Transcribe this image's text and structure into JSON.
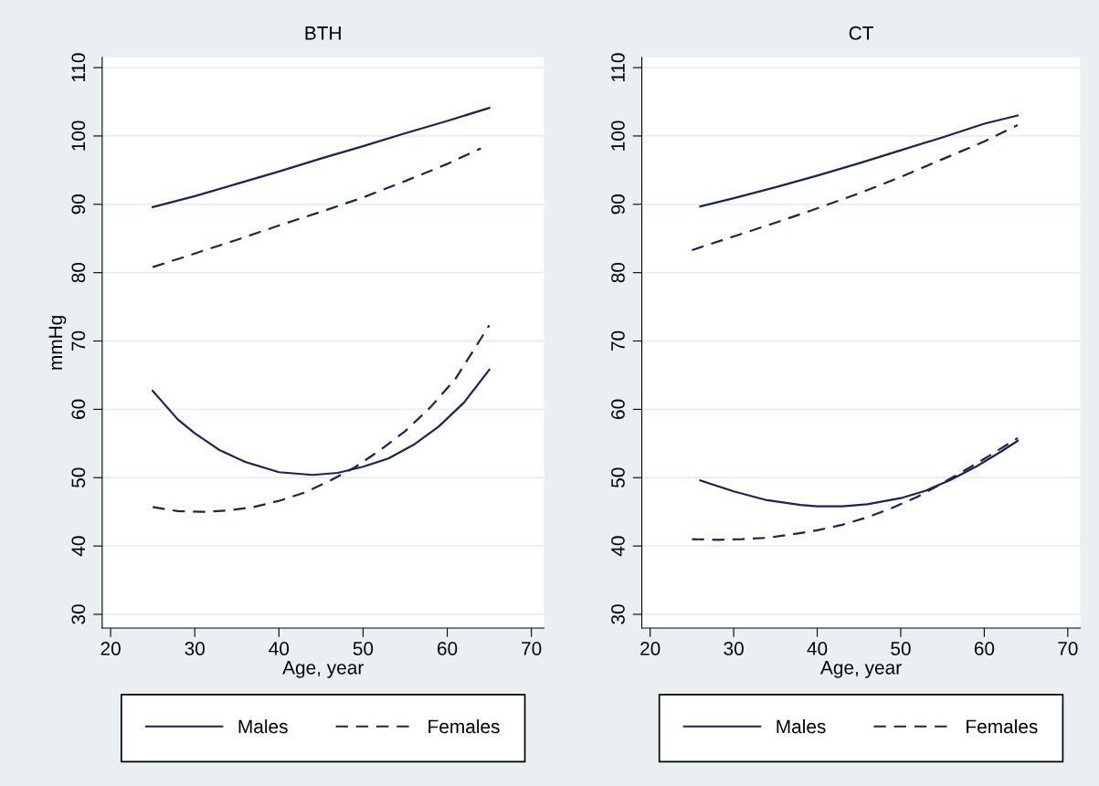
{
  "chart_data": [
    {
      "type": "line",
      "title": "BTH",
      "xlabel": "Age, year",
      "ylabel": "mmHg",
      "xlim": [
        19,
        71.5
      ],
      "ylim": [
        28,
        111.5
      ],
      "xticks": [
        20,
        30,
        40,
        50,
        60,
        70
      ],
      "yticks": [
        30,
        40,
        50,
        60,
        70,
        80,
        90,
        100,
        110
      ],
      "grid": "y",
      "legend": "bottom",
      "series": [
        {
          "name": "Males",
          "color": "#1a2550",
          "line_style": "solid",
          "x": [
            25,
            30,
            35,
            40,
            45,
            50,
            55,
            60,
            65
          ],
          "values": [
            89.6,
            91.2,
            93,
            94.8,
            96.7,
            98.5,
            100.4,
            102.2,
            104.1
          ]
        },
        {
          "name": "Females",
          "color": "#1a2550",
          "line_style": "dashed",
          "x": [
            25,
            30,
            35,
            40,
            45,
            50,
            55,
            60,
            64
          ],
          "values": [
            80.8,
            82.8,
            84.8,
            86.9,
            88.9,
            91.0,
            93.4,
            95.9,
            98.2
          ]
        },
        {
          "color": "#1a2550",
          "line_style": "solid",
          "x": [
            25,
            28,
            30,
            33,
            36,
            40,
            44,
            47,
            50,
            53,
            56,
            59,
            62,
            65
          ],
          "values": [
            62.7,
            58.5,
            56.5,
            54,
            52.3,
            50.8,
            50.4,
            50.7,
            51.6,
            52.8,
            54.8,
            57.5,
            61,
            65.8
          ]
        },
        {
          "color": "#1a2550",
          "line_style": "dashed",
          "x": [
            25,
            28,
            31,
            34,
            37,
            40,
            43,
            46,
            49,
            52,
            55,
            58,
            61,
            65
          ],
          "values": [
            45.7,
            45.1,
            45.0,
            45.2,
            45.7,
            46.6,
            47.8,
            49.5,
            51.5,
            54,
            56.8,
            60.3,
            64.5,
            72.3
          ]
        }
      ]
    },
    {
      "type": "line",
      "title": "CT",
      "xlabel": "Age, year",
      "xlim": [
        19,
        71.5
      ],
      "ylim": [
        28,
        111.5
      ],
      "xticks": [
        20,
        30,
        40,
        50,
        60,
        70
      ],
      "yticks": [
        30,
        40,
        50,
        60,
        70,
        80,
        90,
        100,
        110
      ],
      "grid": "y",
      "legend": "bottom",
      "series": [
        {
          "name": "Males",
          "color": "#1a2550",
          "line_style": "solid",
          "x": [
            26,
            30,
            35,
            40,
            45,
            50,
            55,
            60,
            64
          ],
          "values": [
            89.7,
            90.9,
            92.5,
            94.2,
            96.0,
            97.9,
            99.8,
            101.8,
            103.0
          ]
        },
        {
          "name": "Females",
          "color": "#1a2550",
          "line_style": "dashed",
          "x": [
            25,
            30,
            35,
            40,
            45,
            50,
            55,
            60,
            64
          ],
          "values": [
            83.3,
            85.3,
            87.3,
            89.4,
            91.6,
            94.0,
            96.6,
            99.2,
            101.6
          ]
        },
        {
          "color": "#1a2550",
          "line_style": "solid",
          "x": [
            26,
            30,
            34,
            38,
            40,
            43,
            46,
            50,
            53,
            56,
            59,
            62,
            64
          ],
          "values": [
            49.6,
            48.0,
            46.7,
            46.0,
            45.8,
            45.8,
            46.1,
            47.0,
            48.1,
            49.7,
            51.6,
            53.8,
            55.4
          ]
        },
        {
          "color": "#1a2550",
          "line_style": "dashed",
          "x": [
            25,
            28,
            31,
            34,
            37,
            40,
            43,
            46,
            49,
            52,
            55,
            58,
            61,
            64
          ],
          "values": [
            41.0,
            40.9,
            41.0,
            41.2,
            41.7,
            42.3,
            43.1,
            44.2,
            45.6,
            47.2,
            49.2,
            51.3,
            53.5,
            55.8
          ]
        }
      ]
    }
  ]
}
